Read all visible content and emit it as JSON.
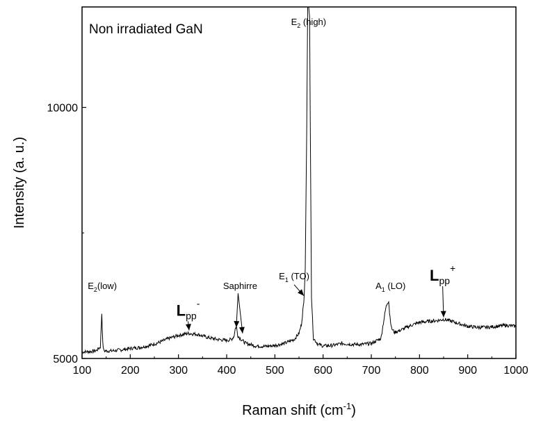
{
  "chart_data": {
    "type": "line",
    "title": "Non irradiated GaN",
    "xlabel": "Raman shift (cm",
    "xlabel_sup": "-1",
    "xlabel_end": ")",
    "ylabel": "Intensity (a. u.)",
    "xlim": [
      100,
      1000
    ],
    "ylim": [
      5000,
      12000
    ],
    "x_ticks": [
      100,
      200,
      300,
      400,
      500,
      600,
      700,
      800,
      900,
      1000
    ],
    "x_tick_labels": [
      "100",
      "200",
      "300",
      "400",
      "500",
      "600",
      "700",
      "800",
      "900",
      "1000"
    ],
    "y_ticks": [
      5000,
      10000
    ],
    "y_tick_labels": [
      "5000",
      "10000"
    ],
    "y_minor_ticks": [
      7500
    ],
    "grid": false,
    "legend": "none",
    "line_color": "#000000",
    "series": [
      {
        "x": [
          100,
          120,
          130,
          138,
          141,
          143,
          145,
          148,
          160,
          180,
          200,
          220,
          240,
          260,
          280,
          300,
          320,
          340,
          360,
          380,
          400,
          410,
          415,
          418,
          420,
          423,
          428,
          432,
          440,
          460,
          480,
          500,
          520,
          540,
          550,
          555,
          558,
          560,
          563,
          566,
          568,
          570,
          572,
          574,
          576,
          580,
          590,
          600,
          620,
          640,
          660,
          680,
          700,
          720,
          725,
          730,
          733,
          736,
          738,
          742,
          748,
          760,
          780,
          800,
          820,
          840,
          850,
          860,
          880,
          900,
          920,
          940,
          960,
          980,
          1000
        ],
        "y": [
          5130,
          5140,
          5160,
          5230,
          5900,
          5300,
          5160,
          5150,
          5150,
          5170,
          5200,
          5220,
          5260,
          5320,
          5400,
          5460,
          5500,
          5480,
          5420,
          5380,
          5360,
          5380,
          5440,
          5600,
          5640,
          5460,
          5400,
          5360,
          5300,
          5250,
          5240,
          5260,
          5300,
          5380,
          5500,
          5680,
          5950,
          6100,
          6800,
          9500,
          12000,
          12000,
          11800,
          9000,
          6200,
          5400,
          5280,
          5250,
          5260,
          5300,
          5280,
          5280,
          5300,
          5400,
          5700,
          6000,
          6100,
          6150,
          5900,
          5600,
          5520,
          5560,
          5650,
          5720,
          5740,
          5760,
          5780,
          5760,
          5700,
          5640,
          5620,
          5620,
          5640,
          5660,
          5640
        ]
      }
    ],
    "annotations": [
      {
        "text": "E",
        "sub": "2",
        "tail": "(low)",
        "x": 142,
        "y": 6380
      },
      {
        "text": "L",
        "sub": "pp",
        "sup": "-",
        "x": 320,
        "y": 5850,
        "arrow_to": [
          322,
          5560
        ]
      },
      {
        "text": "Saphirre",
        "x": 428,
        "y": 6380,
        "arrows_to": [
          [
            420,
            5620
          ],
          [
            433,
            5500
          ]
        ]
      },
      {
        "text": "E",
        "sub": "1",
        "tail": " (TO)",
        "x": 540,
        "y": 6580,
        "arrow_to": [
          560,
          6250
        ]
      },
      {
        "text": "E",
        "sub": "2",
        "tail": " (high)",
        "x": 570,
        "y": 11640
      },
      {
        "text": "A",
        "sub": "1",
        "tail": " (LO)",
        "x": 740,
        "y": 6380
      },
      {
        "text": "L",
        "sub": "pp",
        "sup": "+",
        "x": 848,
        "y": 6550,
        "arrow_to": [
          850,
          5820
        ]
      }
    ]
  }
}
